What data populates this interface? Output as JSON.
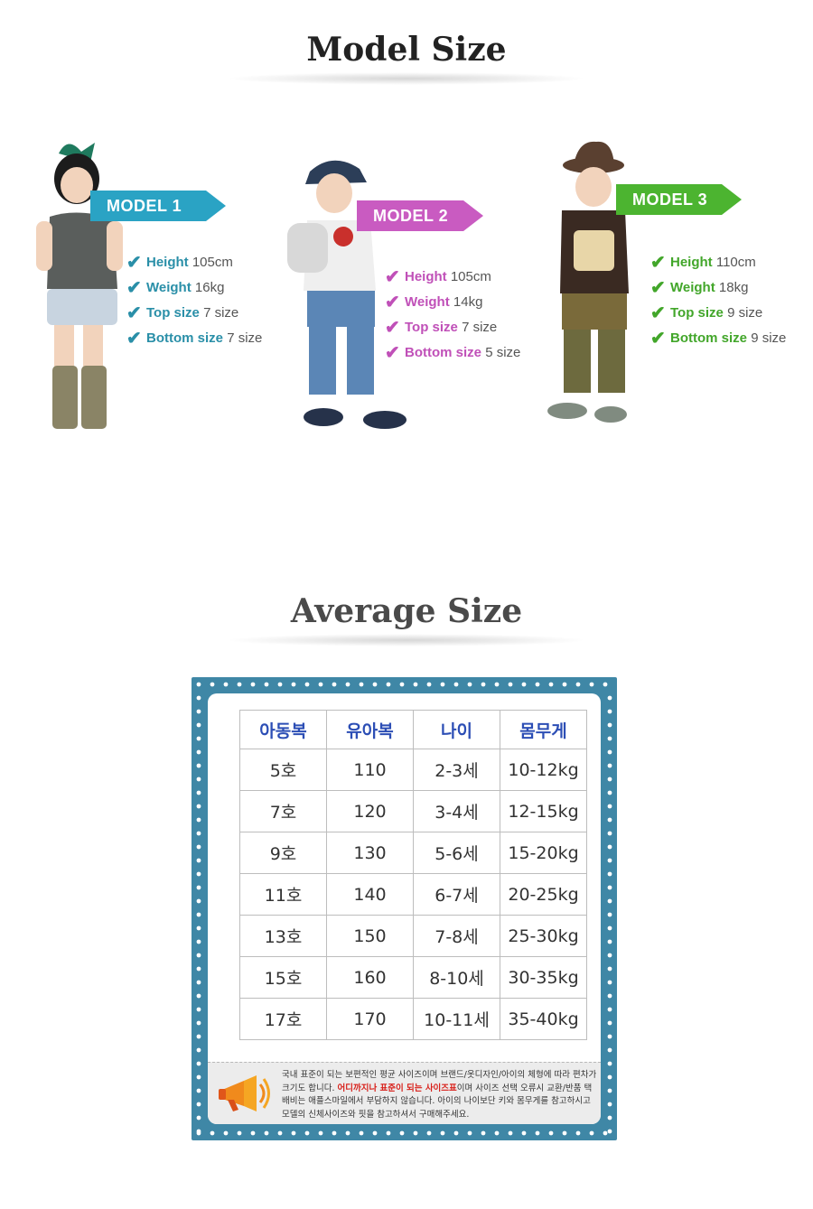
{
  "titles": {
    "model": "Model Size",
    "average": "Average Size"
  },
  "models": [
    {
      "label": "MODEL 1",
      "color": "#2aa3c4",
      "specs": [
        {
          "label": "Height",
          "value": "105cm"
        },
        {
          "label": "Weight",
          "value": "16kg"
        },
        {
          "label": "Top size",
          "value": "7 size"
        },
        {
          "label": "Bottom size",
          "value": "7 size"
        }
      ]
    },
    {
      "label": "MODEL 2",
      "color": "#c95bc1",
      "specs": [
        {
          "label": "Height",
          "value": "105cm"
        },
        {
          "label": "Weight",
          "value": "14kg"
        },
        {
          "label": "Top size",
          "value": "7 size"
        },
        {
          "label": "Bottom size",
          "value": "5 size"
        }
      ]
    },
    {
      "label": "MODEL 3",
      "color": "#4cb430",
      "specs": [
        {
          "label": "Height",
          "value": "110cm"
        },
        {
          "label": "Weight",
          "value": "18kg"
        },
        {
          "label": "Top size",
          "value": "9 size"
        },
        {
          "label": "Bottom size",
          "value": "9 size"
        }
      ]
    }
  ],
  "size_table": {
    "headers": [
      "아동복",
      "유아복",
      "나이",
      "몸무게"
    ],
    "rows": [
      [
        "5호",
        "110",
        "2-3세",
        "10-12kg"
      ],
      [
        "7호",
        "120",
        "3-4세",
        "12-15kg"
      ],
      [
        "9호",
        "130",
        "5-6세",
        "15-20kg"
      ],
      [
        "11호",
        "140",
        "6-7세",
        "20-25kg"
      ],
      [
        "13호",
        "150",
        "7-8세",
        "25-30kg"
      ],
      [
        "15호",
        "160",
        "8-10세",
        "30-35kg"
      ],
      [
        "17호",
        "170",
        "10-11세",
        "35-40kg"
      ]
    ]
  },
  "notice": {
    "part1": "국내 표준이 되는 보편적인 평균 사이즈이며 브랜드/옷디자인/아이의 체형에 따라 편차가 크기도 합니다. ",
    "highlight": "어디까지나 표준이 되는 사이즈표",
    "part2": "이며 사이즈 선택 오류시 교환/반품 택배비는 애플스마일에서 부담하지 않습니다. 아이의 나이보단 키와 몸무게를 참고하시고 모델의 신체사이즈와 핏을 참고하셔서 구매해주세요."
  },
  "colors": {
    "board": "#3f87a6",
    "header_text": "#2c4eb5",
    "notice_red": "#d8201a"
  }
}
